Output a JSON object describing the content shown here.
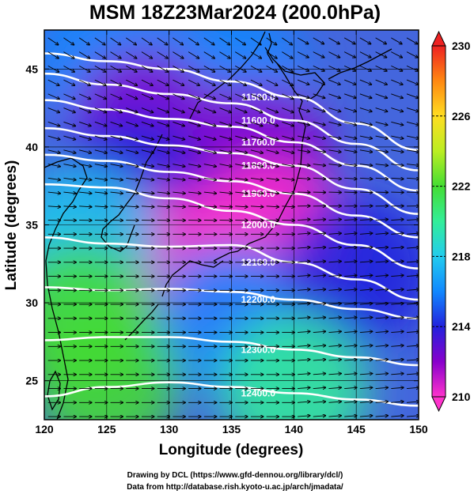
{
  "chart_data": {
    "type": "heatmap",
    "title": "MSM 18Z23Mar2024 (200.0hPa)",
    "xlabel": "Longitude (degrees)",
    "ylabel": "Latitude  (degrees)",
    "xlim": [
      120,
      150
    ],
    "ylim": [
      22.5,
      47.5
    ],
    "x_ticks": [
      120,
      125,
      130,
      135,
      140,
      145,
      150
    ],
    "y_ticks": [
      25,
      30,
      35,
      40,
      45
    ],
    "grid": true,
    "colorbar": {
      "range": [
        210,
        230
      ],
      "ticks": [
        210,
        214,
        218,
        222,
        226,
        230
      ],
      "colors": [
        "#ff33cc",
        "#8800cc",
        "#2222dd",
        "#1188ff",
        "#22ccee",
        "#33ee99",
        "#44dd33",
        "#bbee22",
        "#ffdd22",
        "#ff8811",
        "#ee2222"
      ]
    },
    "temperature_regions": [
      {
        "lon": 125,
        "lat": 45.5,
        "value": 216.5
      },
      {
        "lon": 135,
        "lat": 44.5,
        "value": 215
      },
      {
        "lon": 128,
        "lat": 41.5,
        "value": 211
      },
      {
        "lon": 137,
        "lat": 39.5,
        "value": 211.5
      },
      {
        "lon": 127,
        "lat": 37.5,
        "value": 213
      },
      {
        "lon": 138,
        "lat": 34.5,
        "value": 210.5
      },
      {
        "lon": 131,
        "lat": 32.5,
        "value": 210
      },
      {
        "lon": 123,
        "lat": 34,
        "value": 217.5
      },
      {
        "lon": 123,
        "lat": 29,
        "value": 221.5
      },
      {
        "lon": 135,
        "lat": 29,
        "value": 215
      },
      {
        "lon": 145,
        "lat": 32,
        "value": 213.5
      },
      {
        "lon": 125,
        "lat": 25,
        "value": 221
      },
      {
        "lon": 140,
        "lat": 24.5,
        "value": 219.5
      }
    ],
    "contours": [
      {
        "label": "11500.0",
        "lon": [
          120,
          125,
          130,
          135,
          140,
          145,
          150
        ],
        "lat": [
          46.0,
          45.5,
          45.0,
          44.2,
          43.2,
          41.5,
          39.8
        ]
      },
      {
        "label": "11600.0",
        "lon": [
          120,
          125,
          130,
          135,
          140,
          145,
          150
        ],
        "lat": [
          44.7,
          44.0,
          43.4,
          42.8,
          41.7,
          40.2,
          38.5
        ]
      },
      {
        "label": "11700.0",
        "lon": [
          120,
          125,
          130,
          135,
          140,
          145,
          150
        ],
        "lat": [
          43.0,
          42.4,
          41.8,
          41.3,
          40.3,
          38.8,
          37.2
        ]
      },
      {
        "label": "11800.0",
        "lon": [
          120,
          125,
          130,
          135,
          140,
          145,
          150
        ],
        "lat": [
          41.2,
          40.7,
          40.1,
          39.6,
          38.8,
          37.3,
          35.7
        ]
      },
      {
        "label": "11900.0",
        "lon": [
          120,
          125,
          130,
          135,
          140,
          145,
          150
        ],
        "lat": [
          39.5,
          39.1,
          38.4,
          37.8,
          37.0,
          35.6,
          34.2
        ]
      },
      {
        "label": "12000.0",
        "lon": [
          120,
          125,
          130,
          135,
          140,
          145,
          150
        ],
        "lat": [
          37.6,
          37.4,
          36.7,
          35.9,
          35.0,
          33.7,
          32.2
        ]
      },
      {
        "label": "12100.0",
        "lon": [
          120,
          125,
          130,
          135,
          140,
          145,
          150
        ],
        "lat": [
          34.2,
          33.8,
          33.6,
          33.7,
          32.6,
          31.5,
          30.2
        ]
      },
      {
        "label": "12200.0",
        "lon": [
          120,
          125,
          130,
          135,
          140,
          145,
          150
        ],
        "lat": [
          31.0,
          30.8,
          30.9,
          30.7,
          30.2,
          29.6,
          29.0
        ]
      },
      {
        "label": "12300.0",
        "lon": [
          120,
          125,
          130,
          135,
          140,
          145,
          150
        ],
        "lat": [
          27.6,
          27.8,
          27.8,
          27.5,
          27.0,
          26.5,
          26.0
        ]
      },
      {
        "label": "12400.0",
        "lon": [
          120,
          125,
          130,
          135,
          140,
          145,
          150
        ],
        "lat": [
          24.0,
          24.6,
          24.9,
          24.6,
          24.2,
          23.8,
          23.4
        ]
      }
    ],
    "wind": {
      "lon_step": 1.25,
      "lat_step": 0.9,
      "direction": "west-to-east"
    }
  },
  "footer": {
    "line1": "Drawing by DCL (https://www.gfd-dennou.org/library/dcl/)",
    "line2": "Data from http://database.rish.kyoto-u.ac.jp/arch/jmadata/"
  }
}
